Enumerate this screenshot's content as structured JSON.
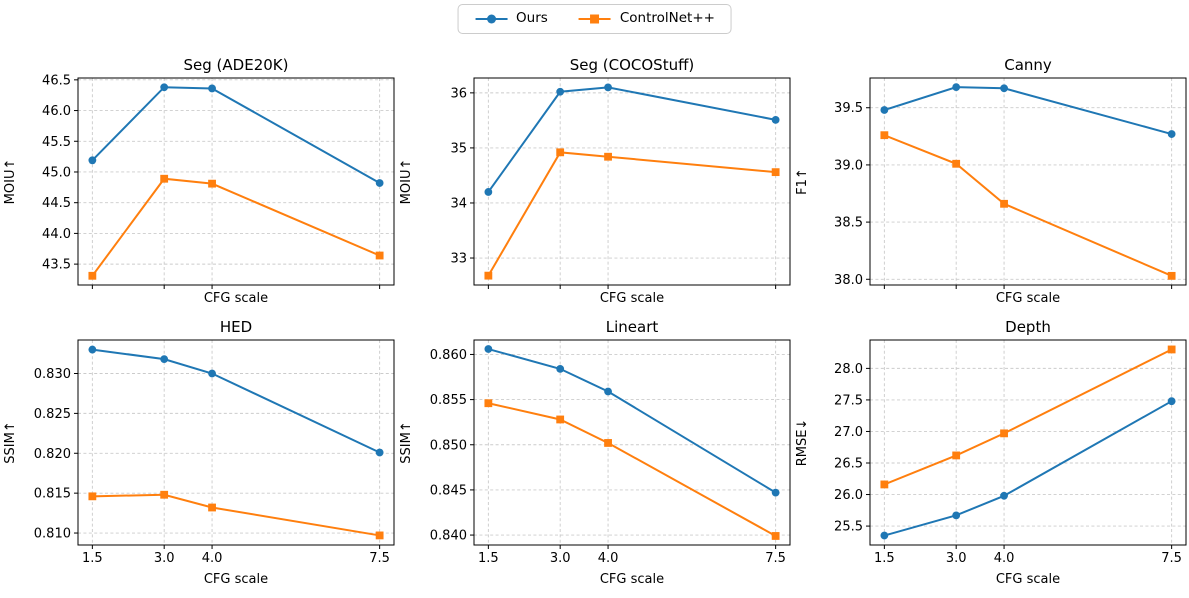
{
  "legend": {
    "items": [
      {
        "label": "Ours",
        "color": "#1f77b4",
        "marker": "circle"
      },
      {
        "label": "ControlNet++",
        "color": "#ff7f0e",
        "marker": "square"
      }
    ]
  },
  "chart_data": [
    {
      "type": "line",
      "title": "Seg (ADE20K)",
      "xlabel": "CFG scale",
      "ylabel": "MOIU↑",
      "x": [
        1.5,
        3.0,
        4.0,
        7.5
      ],
      "xlim": [
        1.2,
        7.8
      ],
      "xtick_labels": [
        "1.5",
        "3.0",
        "4.0",
        "7.5"
      ],
      "show_xtick_labels": false,
      "ylim": [
        43.16,
        46.53
      ],
      "ytick_vals": [
        43.5,
        44.0,
        44.5,
        45.0,
        45.5,
        46.0,
        46.5
      ],
      "ytick_labels": [
        "43.5",
        "44.0",
        "44.5",
        "45.0",
        "45.5",
        "46.0",
        "46.5"
      ],
      "grid": true,
      "legend_position": "figure-top",
      "series": [
        {
          "name": "Ours",
          "color": "#1f77b4",
          "marker": "circle",
          "values": [
            45.19,
            46.38,
            46.36,
            44.82
          ]
        },
        {
          "name": "ControlNet++",
          "color": "#ff7f0e",
          "marker": "square",
          "values": [
            43.31,
            44.89,
            44.81,
            43.64
          ]
        }
      ]
    },
    {
      "type": "line",
      "title": "Seg (COCOStuff)",
      "xlabel": "CFG scale",
      "ylabel": "MOIU↑",
      "x": [
        1.5,
        3.0,
        4.0,
        7.5
      ],
      "xlim": [
        1.2,
        7.8
      ],
      "xtick_labels": [
        "1.5",
        "3.0",
        "4.0",
        "7.5"
      ],
      "show_xtick_labels": false,
      "ylim": [
        32.51,
        36.27
      ],
      "ytick_vals": [
        33,
        34,
        35,
        36
      ],
      "ytick_labels": [
        "33",
        "34",
        "35",
        "36"
      ],
      "grid": true,
      "legend_position": "figure-top",
      "series": [
        {
          "name": "Ours",
          "color": "#1f77b4",
          "marker": "circle",
          "values": [
            34.2,
            36.02,
            36.1,
            35.51
          ]
        },
        {
          "name": "ControlNet++",
          "color": "#ff7f0e",
          "marker": "square",
          "values": [
            32.68,
            34.92,
            34.84,
            34.56
          ]
        }
      ]
    },
    {
      "type": "line",
      "title": "Canny",
      "xlabel": "CFG scale",
      "ylabel": "F1↑",
      "x": [
        1.5,
        3.0,
        4.0,
        7.5
      ],
      "xlim": [
        1.2,
        7.8
      ],
      "xtick_labels": [
        "1.5",
        "3.0",
        "4.0",
        "7.5"
      ],
      "show_xtick_labels": false,
      "ylim": [
        37.95,
        39.76
      ],
      "ytick_vals": [
        38.0,
        38.5,
        39.0,
        39.5
      ],
      "ytick_labels": [
        "38.0",
        "38.5",
        "39.0",
        "39.5"
      ],
      "grid": true,
      "legend_position": "figure-top",
      "series": [
        {
          "name": "Ours",
          "color": "#1f77b4",
          "marker": "circle",
          "values": [
            39.48,
            39.68,
            39.67,
            39.27
          ]
        },
        {
          "name": "ControlNet++",
          "color": "#ff7f0e",
          "marker": "square",
          "values": [
            39.26,
            39.01,
            38.66,
            38.03
          ]
        }
      ]
    },
    {
      "type": "line",
      "title": "HED",
      "xlabel": "CFG scale",
      "ylabel": "SSIM↑",
      "x": [
        1.5,
        3.0,
        4.0,
        7.5
      ],
      "xlim": [
        1.2,
        7.8
      ],
      "xtick_labels": [
        "1.5",
        "3.0",
        "4.0",
        "7.5"
      ],
      "show_xtick_labels": true,
      "ylim": [
        0.8085,
        0.8342
      ],
      "ytick_vals": [
        0.81,
        0.815,
        0.82,
        0.825,
        0.83
      ],
      "ytick_labels": [
        "0.810",
        "0.815",
        "0.820",
        "0.825",
        "0.830"
      ],
      "grid": true,
      "legend_position": "figure-top",
      "series": [
        {
          "name": "Ours",
          "color": "#1f77b4",
          "marker": "circle",
          "values": [
            0.833,
            0.8318,
            0.83,
            0.8201
          ]
        },
        {
          "name": "ControlNet++",
          "color": "#ff7f0e",
          "marker": "square",
          "values": [
            0.8146,
            0.8148,
            0.8132,
            0.8097
          ]
        }
      ]
    },
    {
      "type": "line",
      "title": "Lineart",
      "xlabel": "CFG scale",
      "ylabel": "SSIM↑",
      "x": [
        1.5,
        3.0,
        4.0,
        7.5
      ],
      "xlim": [
        1.2,
        7.8
      ],
      "xtick_labels": [
        "1.5",
        "3.0",
        "4.0",
        "7.5"
      ],
      "show_xtick_labels": true,
      "ylim": [
        0.8389,
        0.8616
      ],
      "ytick_vals": [
        0.84,
        0.845,
        0.85,
        0.855,
        0.86
      ],
      "ytick_labels": [
        "0.840",
        "0.845",
        "0.850",
        "0.855",
        "0.860"
      ],
      "grid": true,
      "legend_position": "figure-top",
      "series": [
        {
          "name": "Ours",
          "color": "#1f77b4",
          "marker": "circle",
          "values": [
            0.8606,
            0.8584,
            0.8559,
            0.8447
          ]
        },
        {
          "name": "ControlNet++",
          "color": "#ff7f0e",
          "marker": "square",
          "values": [
            0.8546,
            0.8528,
            0.8502,
            0.8399
          ]
        }
      ]
    },
    {
      "type": "line",
      "title": "Depth",
      "xlabel": "CFG scale",
      "ylabel": "RMSE↓",
      "x": [
        1.5,
        3.0,
        4.0,
        7.5
      ],
      "xlim": [
        1.2,
        7.8
      ],
      "xtick_labels": [
        "1.5",
        "3.0",
        "4.0",
        "7.5"
      ],
      "show_xtick_labels": true,
      "ylim": [
        25.2,
        28.45
      ],
      "ytick_vals": [
        25.5,
        26.0,
        26.5,
        27.0,
        27.5,
        28.0
      ],
      "ytick_labels": [
        "25.5",
        "26.0",
        "26.5",
        "27.0",
        "27.5",
        "28.0"
      ],
      "grid": true,
      "legend_position": "figure-top",
      "series": [
        {
          "name": "Ours",
          "color": "#1f77b4",
          "marker": "circle",
          "values": [
            25.35,
            25.67,
            25.98,
            27.48
          ]
        },
        {
          "name": "ControlNet++",
          "color": "#ff7f0e",
          "marker": "square",
          "values": [
            26.16,
            26.62,
            26.97,
            28.3
          ]
        }
      ]
    }
  ]
}
